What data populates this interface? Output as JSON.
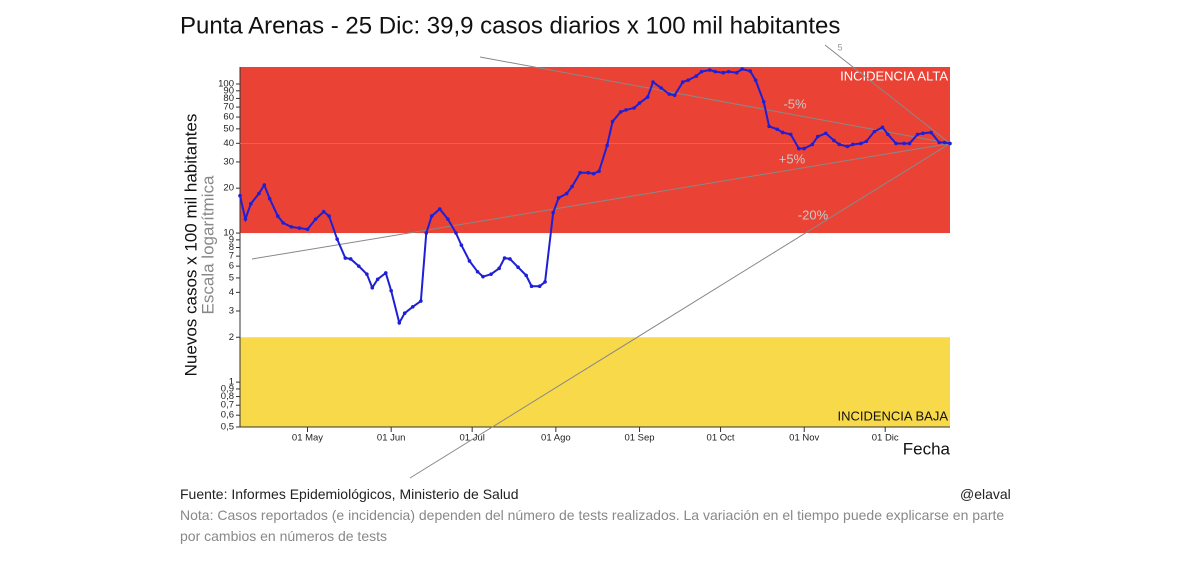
{
  "chart_data": {
    "type": "line",
    "title": "Punta Arenas - 25 Dic: 39,9 casos diarios x 100 mil habitantes",
    "y_label": "Nuevos casos x 100 mil habitantes",
    "y_sublabel": "Escala logarítmica",
    "x_label": "Fecha",
    "log_y": true,
    "xlim": [
      0,
      263
    ],
    "ylim": [
      0.5,
      130
    ],
    "xticks": [
      {
        "value": 25,
        "label": "01 May"
      },
      {
        "value": 56,
        "label": "01 Jun"
      },
      {
        "value": 86,
        "label": "01 Jul"
      },
      {
        "value": 117,
        "label": "01 Ago"
      },
      {
        "value": 148,
        "label": "01 Sep"
      },
      {
        "value": 178,
        "label": "01 Oct"
      },
      {
        "value": 209,
        "label": "01 Nov"
      },
      {
        "value": 239,
        "label": "01 Dic"
      }
    ],
    "yticks": [
      {
        "value": 0.5,
        "label": "0,5"
      },
      {
        "value": 0.6,
        "label": "0,6"
      },
      {
        "value": 0.7,
        "label": "0,7"
      },
      {
        "value": 0.8,
        "label": "0,8"
      },
      {
        "value": 0.9,
        "label": "0,9"
      },
      1,
      2,
      3,
      4,
      5,
      6,
      7,
      8,
      9,
      10,
      20,
      30,
      40,
      50,
      60,
      70,
      80,
      90,
      100
    ],
    "bands": [
      {
        "from": 10,
        "to": 130,
        "color": "#ea4335",
        "label": "INCIDENCIA ALTA"
      },
      {
        "from": 0.5,
        "to": 2,
        "color": "#f8d94a",
        "label": "INCIDENCIA BAJA"
      }
    ],
    "annotations": [
      "-5%",
      "+5%",
      "-20%",
      "5"
    ],
    "series": [
      {
        "name": "Punta Arenas",
        "color": "#1f1fd6",
        "x": [
          0,
          2,
          4,
          7,
          9,
          11,
          14,
          16,
          19,
          22,
          25,
          28,
          31,
          33,
          36,
          39,
          41,
          44,
          47,
          49,
          51,
          54,
          56,
          59,
          61,
          64,
          67,
          69,
          71,
          74,
          77,
          80,
          82,
          85,
          88,
          90,
          93,
          96,
          98,
          100,
          103,
          106,
          108,
          111,
          113,
          116,
          118,
          121,
          123,
          126,
          129,
          131,
          133,
          136,
          138,
          141,
          143,
          146,
          148,
          151,
          153,
          156,
          159,
          161,
          164,
          166,
          169,
          171,
          174,
          176,
          179,
          181,
          184,
          186,
          189,
          191,
          194,
          196,
          199,
          201,
          204,
          207,
          209,
          212,
          214,
          217,
          220,
          222,
          225,
          227,
          230,
          232,
          235,
          238,
          240,
          243,
          246,
          248,
          251,
          253,
          256,
          259,
          261,
          263
        ],
        "values": [
          17.8,
          12.4,
          15.7,
          18.4,
          21,
          17,
          13,
          11.7,
          11,
          10.8,
          10.6,
          12.4,
          13.9,
          13,
          9.1,
          6.8,
          6.7,
          6,
          5.3,
          4.3,
          4.9,
          5.4,
          4.1,
          2.5,
          2.9,
          3.2,
          3.5,
          10,
          13,
          14.5,
          12.4,
          10,
          8.3,
          6.5,
          5.5,
          5.1,
          5.3,
          5.8,
          6.8,
          6.7,
          5.9,
          5.2,
          4.4,
          4.4,
          4.7,
          13.7,
          17.2,
          18.4,
          20.5,
          25.4,
          25.4,
          25,
          26,
          38.7,
          56,
          65,
          67,
          69,
          74.5,
          81.7,
          103,
          94,
          85.5,
          84,
          103,
          106,
          113,
          121,
          124,
          121,
          119,
          121,
          119,
          126,
          122,
          106,
          76,
          52,
          49.7,
          47.3,
          45.9,
          36.9,
          36.9,
          39.3,
          44.4,
          46.7,
          41.8,
          39.3,
          38.1,
          39.3,
          39.9,
          41.2,
          48,
          51.2,
          45.9,
          39.9,
          39.9,
          39.9,
          45.9,
          46.7,
          47.3,
          40.5,
          40.5,
          39.9
        ]
      }
    ]
  },
  "footer": {
    "source": "Fuente: Informes Epidemiológicos, Ministerio de Salud",
    "handle": "@elaval",
    "note": "Nota: Casos reportados (e incidencia) dependen del número de tests realizados. La variación en el tiempo puede explicarse en parte por cambios en números de tests"
  }
}
